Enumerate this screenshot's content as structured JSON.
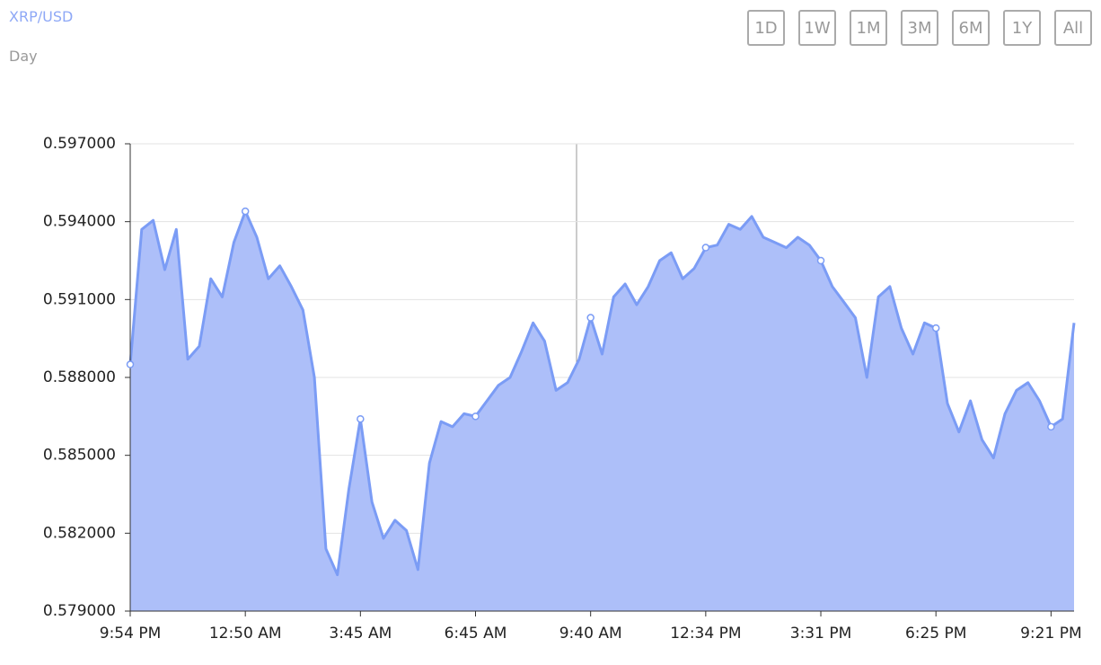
{
  "header": {
    "pair": "XRP/USD",
    "interval": "Day"
  },
  "range_buttons": [
    "1D",
    "1W",
    "1M",
    "3M",
    "6M",
    "1Y",
    "All"
  ],
  "chart_data": {
    "type": "area",
    "categories": [
      "9:54 PM",
      null,
      null,
      null,
      null,
      null,
      null,
      null,
      null,
      null,
      "12:50 AM",
      null,
      null,
      null,
      null,
      null,
      null,
      null,
      null,
      null,
      "3:45 AM",
      null,
      null,
      null,
      null,
      null,
      null,
      null,
      null,
      null,
      "6:45 AM",
      null,
      null,
      null,
      null,
      null,
      null,
      null,
      null,
      null,
      "9:40 AM",
      null,
      null,
      null,
      null,
      null,
      null,
      null,
      null,
      null,
      "12:34 PM",
      null,
      null,
      null,
      null,
      null,
      null,
      null,
      null,
      null,
      "3:31 PM",
      null,
      null,
      null,
      null,
      null,
      null,
      null,
      null,
      null,
      "6:25 PM",
      null,
      null,
      null,
      null,
      null,
      null,
      null,
      null,
      null,
      "9:21 PM",
      null,
      null
    ],
    "values": [
      0.5885,
      0.5937,
      0.59405,
      0.59215,
      0.5937,
      0.5887,
      0.5892,
      0.5918,
      0.5911,
      0.5932,
      0.5944,
      0.5934,
      0.5918,
      0.5923,
      0.5915,
      0.5906,
      0.588,
      0.5814,
      0.5804,
      0.5837,
      0.5864,
      0.5832,
      0.5818,
      0.5825,
      0.5821,
      0.5806,
      0.5847,
      0.5863,
      0.5861,
      0.5866,
      0.5865,
      0.5871,
      0.5877,
      0.588,
      0.589,
      0.5901,
      0.5894,
      0.5875,
      0.5878,
      0.5887,
      0.5903,
      0.5889,
      0.5911,
      0.5916,
      0.5908,
      0.5915,
      0.5925,
      0.5928,
      0.5918,
      0.5922,
      0.593,
      0.5931,
      0.5939,
      0.5937,
      0.5942,
      0.5934,
      0.5932,
      0.593,
      0.5934,
      0.5931,
      0.5925,
      0.5915,
      0.5909,
      0.5903,
      0.588,
      0.5911,
      0.5915,
      0.5899,
      0.5889,
      0.5901,
      0.5899,
      0.587,
      0.5859,
      0.5871,
      0.5856,
      0.5849,
      0.5866,
      0.5875,
      0.5878,
      0.5871,
      0.5861,
      0.5864,
      0.5901
    ],
    "color": "#7b9cf5",
    "fill": "#adbff9",
    "ylim": [
      0.579,
      0.597
    ],
    "yticks": [
      {
        "value": 0.579,
        "label": "0.579000"
      },
      {
        "value": 0.582,
        "label": "0.582000"
      },
      {
        "value": 0.585,
        "label": "0.585000"
      },
      {
        "value": 0.588,
        "label": "0.588000"
      },
      {
        "value": 0.591,
        "label": "0.591000"
      },
      {
        "value": 0.594,
        "label": "0.594000"
      },
      {
        "value": 0.597,
        "label": "0.597000"
      }
    ],
    "grid": true
  }
}
